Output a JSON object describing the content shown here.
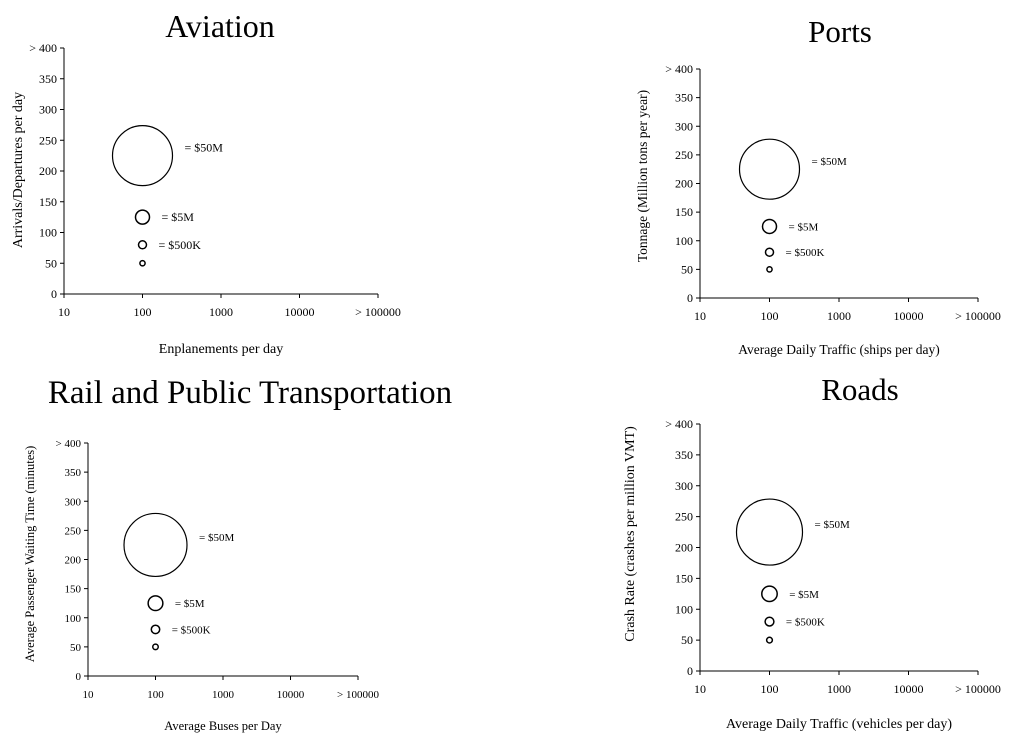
{
  "chart_data": [
    {
      "type": "scatter",
      "title": "Aviation",
      "xlabel": "Enplanements per day",
      "ylabel": "Arrivals/Departures per day",
      "x_scale": "log",
      "xticks": [
        "10",
        "100",
        "1000",
        "10000",
        "> 100000"
      ],
      "yticks": [
        "0",
        "50",
        "100",
        "150",
        "200",
        "250",
        "300",
        "350",
        "> 400"
      ],
      "xlim": [
        10,
        100000
      ],
      "ylim": [
        0,
        400
      ],
      "grid": false,
      "points": [
        {
          "x": 100,
          "y": 225,
          "size": "large",
          "label": "= $50M"
        },
        {
          "x": 100,
          "y": 125,
          "size": "medium",
          "label": "= $5M"
        },
        {
          "x": 100,
          "y": 80,
          "size": "small",
          "label": "= $500K"
        },
        {
          "x": 100,
          "y": 50,
          "size": "tiny",
          "label": ""
        }
      ]
    },
    {
      "type": "scatter",
      "title": "Ports",
      "xlabel": "Average Daily Traffic (ships per day)",
      "ylabel": "Tonnage (Million tons per year)",
      "x_scale": "log",
      "xticks": [
        "10",
        "100",
        "1000",
        "10000",
        "> 100000"
      ],
      "yticks": [
        "0",
        "50",
        "100",
        "150",
        "200",
        "250",
        "300",
        "350",
        "> 400"
      ],
      "xlim": [
        10,
        100000
      ],
      "ylim": [
        0,
        400
      ],
      "grid": false,
      "points": [
        {
          "x": 100,
          "y": 225,
          "size": "large",
          "label": "= $50M"
        },
        {
          "x": 100,
          "y": 125,
          "size": "medium",
          "label": "= $5M"
        },
        {
          "x": 100,
          "y": 80,
          "size": "small",
          "label": "= $500K"
        },
        {
          "x": 100,
          "y": 50,
          "size": "tiny",
          "label": ""
        }
      ]
    },
    {
      "type": "scatter",
      "title": "Rail and Public Transportation",
      "xlabel": "Average Buses per Day",
      "ylabel": "Average Passenger Waiting Time (minutes)",
      "x_scale": "log",
      "xticks": [
        "10",
        "100",
        "1000",
        "10000",
        "> 100000"
      ],
      "yticks": [
        "0",
        "50",
        "100",
        "150",
        "200",
        "250",
        "300",
        "350",
        "> 400"
      ],
      "xlim": [
        10,
        100000
      ],
      "ylim": [
        0,
        400
      ],
      "grid": false,
      "points": [
        {
          "x": 100,
          "y": 225,
          "size": "large",
          "label": "= $50M"
        },
        {
          "x": 100,
          "y": 125,
          "size": "medium",
          "label": "= $5M"
        },
        {
          "x": 100,
          "y": 80,
          "size": "small",
          "label": "= $500K"
        },
        {
          "x": 100,
          "y": 50,
          "size": "tiny",
          "label": ""
        }
      ]
    },
    {
      "type": "scatter",
      "title": "Roads",
      "xlabel": "Average Daily Traffic (vehicles per day)",
      "ylabel": "Crash Rate (crashes per million VMT)",
      "x_scale": "log",
      "xticks": [
        "10",
        "100",
        "1000",
        "10000",
        "> 100000"
      ],
      "yticks": [
        "0",
        "50",
        "100",
        "150",
        "200",
        "250",
        "300",
        "350",
        "> 400"
      ],
      "xlim": [
        10,
        100000
      ],
      "ylim": [
        0,
        400
      ],
      "grid": false,
      "points": [
        {
          "x": 100,
          "y": 225,
          "size": "large",
          "label": "= $50M"
        },
        {
          "x": 100,
          "y": 125,
          "size": "medium",
          "label": "= $5M"
        },
        {
          "x": 100,
          "y": 80,
          "size": "small",
          "label": "= $500K"
        },
        {
          "x": 100,
          "y": 50,
          "size": "tiny",
          "label": ""
        }
      ]
    }
  ]
}
